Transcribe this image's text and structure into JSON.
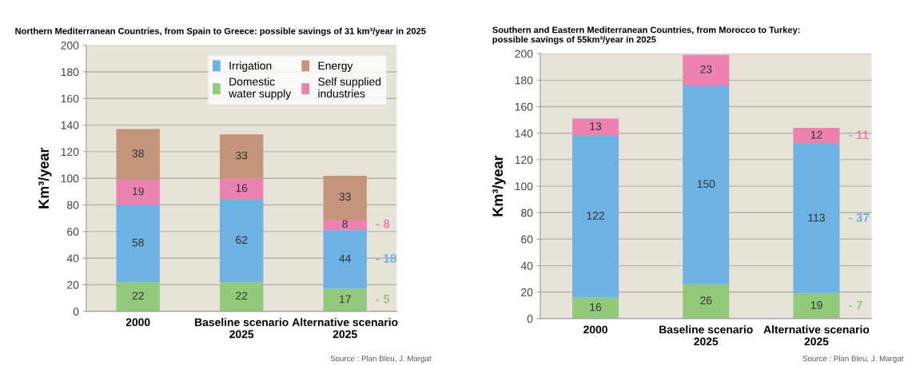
{
  "chart_data": [
    {
      "type": "bar",
      "stacked": true,
      "title": "Northern Mediterranean Countries, from Spain to Greece: possible savings of 31 km³/year in 2025",
      "ylabel": "Km³/year",
      "categories": [
        "2000",
        "Baseline scenario\n2025",
        "Alternative scenario\n2025"
      ],
      "series": [
        {
          "name": "Domestic\nwater supply",
          "color": "#92c97a",
          "values": [
            22,
            22,
            17
          ]
        },
        {
          "name": "Irrigation",
          "color": "#6cb2e2",
          "values": [
            58,
            62,
            44
          ]
        },
        {
          "name": "Self supplied\nindustries",
          "color": "#ec82b0",
          "values": [
            19,
            16,
            8
          ]
        },
        {
          "name": "Energy",
          "color": "#c4957a",
          "values": [
            38,
            33,
            33
          ]
        }
      ],
      "ylim": [
        0,
        200
      ],
      "yticks": [
        0,
        20,
        40,
        60,
        80,
        100,
        120,
        140,
        160,
        180,
        200
      ],
      "grid": "y",
      "legend": "top right",
      "data_labels": true,
      "annotations": [
        "- 8",
        "- 18",
        "- 5",
        "Source : Plan Bleu, J. Margat"
      ]
    },
    {
      "type": "bar",
      "stacked": true,
      "title": "Southern and Eastern Mediterranean Countries, from Morocco to Turkey:\npossible savings of 55km³/year in 2025",
      "ylabel": "Km³/year",
      "categories": [
        "2000",
        "Baseline scenario\n2025",
        "Alternative scenario\n2025"
      ],
      "series": [
        {
          "color": "#92c97a",
          "values": [
            16,
            26,
            19
          ]
        },
        {
          "color": "#6cb2e2",
          "values": [
            122,
            150,
            113
          ]
        },
        {
          "color": "#ec82b0",
          "values": [
            13,
            23,
            12
          ]
        }
      ],
      "ylim": [
        0,
        200
      ],
      "yticks": [
        0,
        20,
        40,
        60,
        80,
        100,
        120,
        140,
        160,
        180,
        200
      ],
      "grid": "y",
      "data_labels": true,
      "annotations": [
        "- 11",
        "- 37",
        "- 7",
        "Source : Plan Bleu, J. Margat"
      ]
    }
  ]
}
